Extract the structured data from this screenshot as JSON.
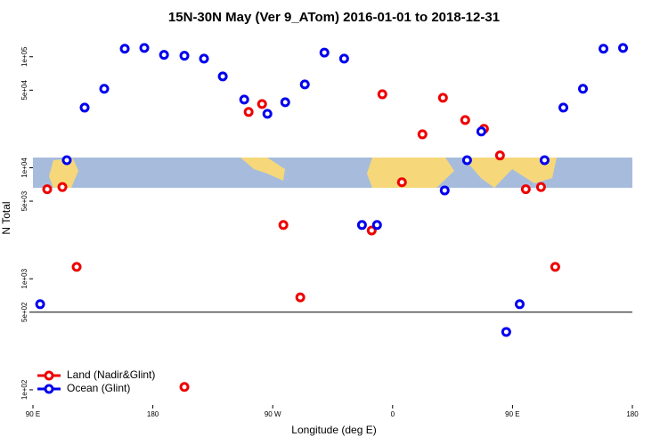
{
  "chart_data": {
    "type": "scatter",
    "title": "15N-30N May (Ver 9_ATom)   2016-01-01 to 2018-12-31",
    "x_label": "Longitude (deg E)",
    "y_label": "N Total",
    "log_y": true,
    "xlim": [
      90,
      540
    ],
    "xticks": [
      {
        "value": 90,
        "label": "90 E"
      },
      {
        "value": 180,
        "label": "180"
      },
      {
        "value": 270,
        "label": "90 W"
      },
      {
        "value": 360,
        "label": "0"
      },
      {
        "value": 450,
        "label": "90 E"
      },
      {
        "value": 540,
        "label": "180"
      }
    ],
    "ylim": [
      73,
      170000
    ],
    "yticks": [
      {
        "value": 100,
        "label": "1e+02"
      },
      {
        "value": 500,
        "label": "5e+02"
      },
      {
        "value": 1000,
        "label": "1e+03"
      },
      {
        "value": 5000,
        "label": "5e+03"
      },
      {
        "value": 10000,
        "label": "1e+04"
      },
      {
        "value": 50000,
        "label": "5e+04"
      },
      {
        "value": 100000,
        "label": "1e+05"
      }
    ],
    "hline": 500,
    "legend_position": "lower left",
    "series": [
      {
        "name": "Land (Nadir&Glint)",
        "color": "#ee0000",
        "x": [
          100.7,
          112.1,
          122.8,
          251.9,
          262.0,
          278.0,
          290.7,
          344.3,
          352.3,
          367.0,
          382.4,
          397.8,
          414.5,
          428.6,
          440.6,
          460.0,
          471.4,
          482.1,
          203.7
        ],
        "values": [
          6400,
          6700,
          1280,
          31800,
          37500,
          3050,
          680,
          2720,
          45900,
          7400,
          20000,
          42700,
          26900,
          22400,
          12900,
          6400,
          6700,
          1280,
          106
        ]
      },
      {
        "name": "Ocean (Glint)",
        "color": "#0000ee",
        "x": [
          95.4,
          115.4,
          128.8,
          143.5,
          158.9,
          173.6,
          188.4,
          203.7,
          218.4,
          232.5,
          248.6,
          266.0,
          279.4,
          294.1,
          308.8,
          323.6,
          337.0,
          348.3,
          399.1,
          415.9,
          426.6,
          445.3,
          455.4,
          474.1,
          488.2,
          502.9,
          518.3,
          533.0
        ],
        "values": [
          590,
          11700,
          34800,
          51400,
          118000,
          120000,
          104000,
          102000,
          96200,
          66500,
          41100,
          30600,
          38900,
          56300,
          109000,
          96200,
          3050,
          3050,
          6250,
          11700,
          21200,
          332,
          590,
          11700,
          34800,
          51400,
          118000,
          120000
        ]
      }
    ]
  }
}
